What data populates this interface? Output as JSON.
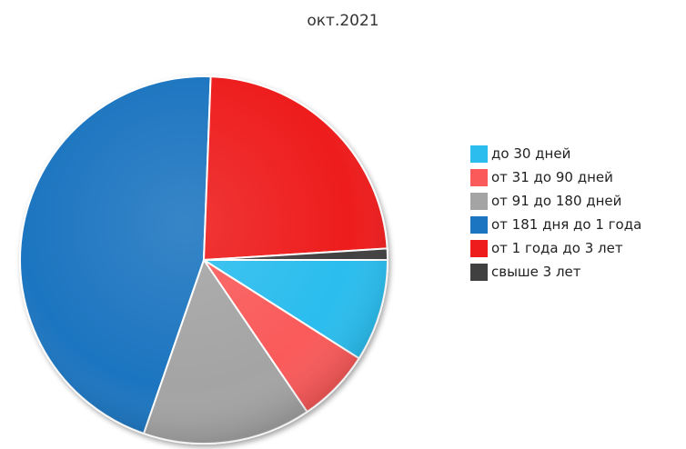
{
  "chart_data": {
    "type": "pie",
    "title": "",
    "subtitle": "окт.2021",
    "legend_position": "right",
    "start_angle_deg": 90,
    "direction": "clockwise",
    "slices": [
      {
        "label": "до 30 дней",
        "value": 9.0,
        "color": "#2bbdee"
      },
      {
        "label": "от 31 до 90 дней",
        "value": 6.5,
        "color": "#fa5a5a"
      },
      {
        "label": "от 91 до 180 дней",
        "value": 14.8,
        "color": "#a4a4a4"
      },
      {
        "label": "от 181 дня до 1 года",
        "value": 45.3,
        "color": "#1b75c0"
      },
      {
        "label": "от 1 года до 3 лет",
        "value": 23.4,
        "color": "#ee1c1c"
      },
      {
        "label": "свыше 3 лет",
        "value": 1.0,
        "color": "#404040"
      }
    ]
  }
}
